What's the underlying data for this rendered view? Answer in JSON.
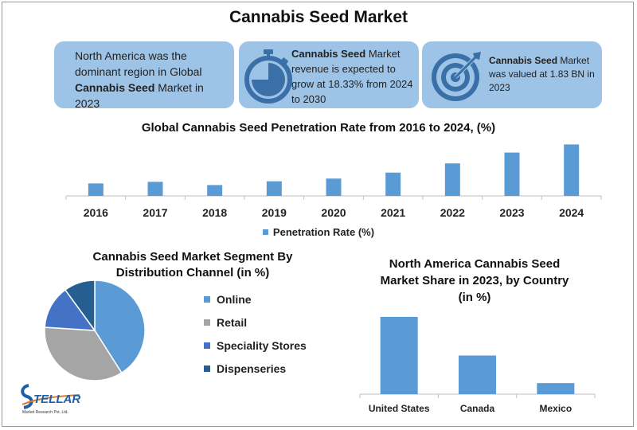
{
  "header": {
    "title": "Cannabis Seed Market"
  },
  "cards": [
    {
      "pre": "North America was the dominant region in Global ",
      "bold": "Cannabis Seed",
      "post": " Market in 2023",
      "icon": "none"
    },
    {
      "pre": "",
      "bold": "Cannabis Seed",
      "post": " Market revenue is expected to grow at 18.33% from 2024 to 2030",
      "icon": "stopwatch-icon"
    },
    {
      "pre": "",
      "bold": "Cannabis Seed",
      "post": " Market was valued at 1.83 BN in 2023",
      "icon": "target-icon"
    }
  ],
  "colors": {
    "card_bg": "#9dc3e6",
    "bar": "#5b9bd5",
    "online": "#5b9bd5",
    "retail": "#a5a5a5",
    "speciality": "#4472c4",
    "dispenseries": "#255e91"
  },
  "chart_data": [
    {
      "type": "bar",
      "title": "Global Cannabis Seed Penetration Rate from 2016 to 2024, (%)",
      "categories": [
        "2016",
        "2017",
        "2018",
        "2019",
        "2020",
        "2021",
        "2022",
        "2023",
        "2024"
      ],
      "series": [
        {
          "name": "Penetration Rate (%)",
          "values": [
            2.3,
            2.6,
            2.0,
            2.7,
            3.2,
            4.3,
            6.0,
            8.0,
            9.5
          ]
        }
      ],
      "ylim": [
        0,
        10
      ],
      "legend": "bottom",
      "grid": false
    },
    {
      "type": "pie",
      "title": "Cannabis Seed Market Segment By Distribution Channel (in %)",
      "categories": [
        "Online",
        "Retail",
        "Speciality Stores",
        "Dispenseries"
      ],
      "values": [
        41,
        35,
        14,
        10
      ],
      "legend": "right"
    },
    {
      "type": "bar",
      "title": "North America Cannabis Seed Market Share in 2023, by Country (in %)",
      "categories": [
        "United States",
        "Canada",
        "Mexico"
      ],
      "values": [
        70,
        35,
        10
      ],
      "ylim": [
        0,
        75
      ],
      "grid": false
    }
  ],
  "logo": {
    "word": "TELLAR",
    "tagline": "Market Research Pvt. Ltd."
  }
}
